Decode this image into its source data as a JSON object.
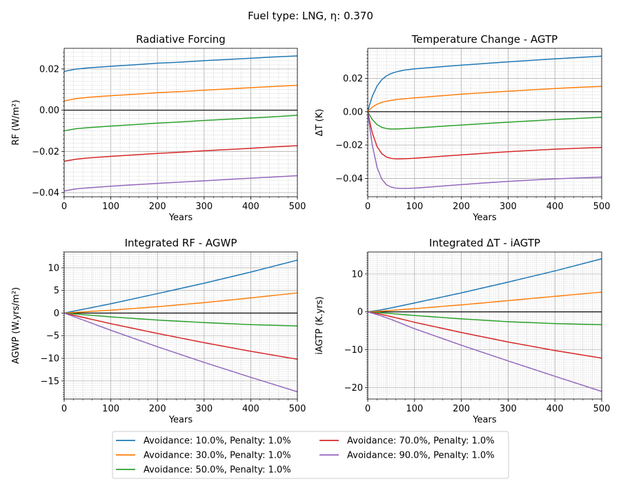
{
  "figure": {
    "title": "Fuel type: LNG, η: 0.370"
  },
  "series_colors": [
    "#1f77b4",
    "#ff7f0e",
    "#2ca02c",
    "#d62728",
    "#9467bd"
  ],
  "legend": {
    "placement": "bottom-center",
    "entries": [
      "Avoidance: 10.0%, Penalty: 1.0%",
      "Avoidance: 30.0%, Penalty: 1.0%",
      "Avoidance: 50.0%, Penalty: 1.0%",
      "Avoidance: 70.0%, Penalty: 1.0%",
      "Avoidance: 90.0%, Penalty: 1.0%"
    ]
  },
  "chart_data": [
    {
      "type": "line",
      "title": "Radiative Forcing",
      "xlabel": "Years",
      "ylabel": "RF (W/m²)",
      "xlim": [
        0,
        500
      ],
      "ylim": [
        -0.042,
        0.03
      ],
      "xticks": [
        0,
        100,
        200,
        300,
        400,
        500
      ],
      "yticks": [
        -0.04,
        -0.02,
        0.0,
        0.02
      ],
      "ytick_labels": [
        "−0.04",
        "−0.02",
        "0.00",
        "0.02"
      ],
      "grid": true,
      "zero_line": true,
      "x": [
        0,
        25,
        50,
        100,
        150,
        200,
        250,
        300,
        350,
        400,
        450,
        500
      ],
      "series": [
        {
          "name": "Avoidance: 10.0%, Penalty: 1.0%",
          "values": [
            0.0188,
            0.0199,
            0.0205,
            0.0213,
            0.022,
            0.0228,
            0.0233,
            0.024,
            0.0246,
            0.0252,
            0.0258,
            0.0263
          ]
        },
        {
          "name": "Avoidance: 30.0%, Penalty: 1.0%",
          "values": [
            0.0045,
            0.0056,
            0.0062,
            0.007,
            0.0077,
            0.0085,
            0.009,
            0.0097,
            0.0103,
            0.0109,
            0.0115,
            0.0121
          ]
        },
        {
          "name": "Avoidance: 50.0%, Penalty: 1.0%",
          "values": [
            -0.01,
            -0.009,
            -0.0085,
            -0.0077,
            -0.007,
            -0.0063,
            -0.0057,
            -0.005,
            -0.0044,
            -0.0038,
            -0.0032,
            -0.0025
          ]
        },
        {
          "name": "Avoidance: 70.0%, Penalty: 1.0%",
          "values": [
            -0.0248,
            -0.0238,
            -0.0232,
            -0.0224,
            -0.0217,
            -0.021,
            -0.0204,
            -0.0197,
            -0.0191,
            -0.0185,
            -0.0178,
            -0.0172
          ]
        },
        {
          "name": "Avoidance: 90.0%, Penalty: 1.0%",
          "values": [
            -0.0392,
            -0.0382,
            -0.0377,
            -0.0369,
            -0.0362,
            -0.0355,
            -0.0349,
            -0.0343,
            -0.0336,
            -0.033,
            -0.0324,
            -0.0318
          ]
        }
      ]
    },
    {
      "type": "line",
      "title": "Temperature Change - AGTP",
      "xlabel": "Years",
      "ylabel": "ΔT (K)",
      "xlim": [
        0,
        500
      ],
      "ylim": [
        -0.051,
        0.038
      ],
      "xticks": [
        0,
        100,
        200,
        300,
        400,
        500
      ],
      "yticks": [
        -0.04,
        -0.02,
        0.0,
        0.02
      ],
      "ytick_labels": [
        "−0.04",
        "−0.02",
        "0.00",
        "0.02"
      ],
      "grid": true,
      "zero_line": true,
      "x": [
        0,
        5,
        10,
        20,
        30,
        40,
        50,
        60,
        70,
        80,
        100,
        150,
        200,
        250,
        300,
        350,
        400,
        450,
        500
      ],
      "series": [
        {
          "name": "Avoidance: 10.0%, Penalty: 1.0%",
          "values": [
            0.0,
            0.0052,
            0.0095,
            0.0155,
            0.0192,
            0.0215,
            0.0229,
            0.0238,
            0.0245,
            0.025,
            0.0257,
            0.0268,
            0.0279,
            0.0289,
            0.0299,
            0.0308,
            0.0317,
            0.0325,
            0.0333
          ]
        },
        {
          "name": "Avoidance: 30.0%, Penalty: 1.0%",
          "values": [
            0.0,
            0.0015,
            0.0028,
            0.0045,
            0.0056,
            0.0063,
            0.0068,
            0.0072,
            0.0075,
            0.0078,
            0.0083,
            0.0094,
            0.0105,
            0.0114,
            0.0123,
            0.0131,
            0.0139,
            0.0146,
            0.0152
          ]
        },
        {
          "name": "Avoidance: 50.0%, Penalty: 1.0%",
          "values": [
            0.0,
            -0.0025,
            -0.0048,
            -0.0078,
            -0.0094,
            -0.0101,
            -0.0104,
            -0.0104,
            -0.0103,
            -0.0101,
            -0.0098,
            -0.0089,
            -0.008,
            -0.0071,
            -0.0063,
            -0.0055,
            -0.0047,
            -0.004,
            -0.0033
          ]
        },
        {
          "name": "Avoidance: 70.0%, Penalty: 1.0%",
          "values": [
            0.0,
            -0.007,
            -0.013,
            -0.021,
            -0.0252,
            -0.0272,
            -0.028,
            -0.0283,
            -0.0283,
            -0.0282,
            -0.0279,
            -0.0269,
            -0.0259,
            -0.0249,
            -0.024,
            -0.0232,
            -0.0225,
            -0.0219,
            -0.0214
          ]
        },
        {
          "name": "Avoidance: 90.0%, Penalty: 1.0%",
          "values": [
            0.0,
            -0.011,
            -0.0205,
            -0.0335,
            -0.0405,
            -0.0438,
            -0.0452,
            -0.0458,
            -0.046,
            -0.046,
            -0.0458,
            -0.0448,
            -0.0437,
            -0.0427,
            -0.0418,
            -0.041,
            -0.0403,
            -0.0397,
            -0.0392
          ]
        }
      ]
    },
    {
      "type": "line",
      "title": "Integrated RF - AGWP",
      "xlabel": "Years",
      "ylabel": "AGWP (W.yrs/m²)",
      "xlim": [
        0,
        500
      ],
      "ylim": [
        -19,
        13.5
      ],
      "xticks": [
        0,
        100,
        200,
        300,
        400,
        500
      ],
      "yticks": [
        -15,
        -10,
        -5,
        0,
        5,
        10
      ],
      "ytick_labels": [
        "−15",
        "−10",
        "−5",
        "0",
        "5",
        "10"
      ],
      "grid": true,
      "zero_line": true,
      "x": [
        0,
        100,
        200,
        300,
        400,
        500
      ],
      "series": [
        {
          "name": "Avoidance: 10.0%, Penalty: 1.0%",
          "values": [
            0,
            2.05,
            4.3,
            6.6,
            9.05,
            11.7
          ]
        },
        {
          "name": "Avoidance: 30.0%, Penalty: 1.0%",
          "values": [
            0,
            0.62,
            1.4,
            2.3,
            3.35,
            4.45
          ]
        },
        {
          "name": "Avoidance: 50.0%, Penalty: 1.0%",
          "values": [
            0,
            -0.85,
            -1.55,
            -2.1,
            -2.55,
            -2.85
          ]
        },
        {
          "name": "Avoidance: 70.0%, Penalty: 1.0%",
          "values": [
            0,
            -2.35,
            -4.5,
            -6.55,
            -8.45,
            -10.2
          ]
        },
        {
          "name": "Avoidance: 90.0%, Penalty: 1.0%",
          "values": [
            0,
            -3.8,
            -7.45,
            -10.9,
            -14.2,
            -17.4
          ]
        }
      ]
    },
    {
      "type": "line",
      "title": "Integrated ΔT - iAGTP",
      "xlabel": "Years",
      "ylabel": "iAGTP (K.yrs)",
      "xlim": [
        0,
        500
      ],
      "ylim": [
        -23,
        15.8
      ],
      "xticks": [
        0,
        100,
        200,
        300,
        400,
        500
      ],
      "yticks": [
        -20,
        -10,
        0,
        10
      ],
      "ytick_labels": [
        "−20",
        "−10",
        "0",
        "10"
      ],
      "grid": true,
      "zero_line": true,
      "x": [
        0,
        25,
        50,
        100,
        200,
        300,
        400,
        500
      ],
      "series": [
        {
          "name": "Avoidance: 10.0%, Penalty: 1.0%",
          "values": [
            0,
            0.45,
            1.05,
            2.35,
            5.0,
            7.85,
            10.8,
            14.0
          ]
        },
        {
          "name": "Avoidance: 30.0%, Penalty: 1.0%",
          "values": [
            0,
            0.15,
            0.38,
            0.85,
            1.85,
            2.95,
            4.1,
            5.2
          ]
        },
        {
          "name": "Avoidance: 50.0%, Penalty: 1.0%",
          "values": [
            0,
            -0.2,
            -0.45,
            -0.95,
            -1.85,
            -2.6,
            -3.1,
            -3.4
          ]
        },
        {
          "name": "Avoidance: 70.0%, Penalty: 1.0%",
          "values": [
            0,
            -0.55,
            -1.25,
            -2.75,
            -5.45,
            -7.95,
            -10.2,
            -12.2
          ]
        },
        {
          "name": "Avoidance: 90.0%, Penalty: 1.0%",
          "values": [
            0,
            -0.9,
            -2.0,
            -4.45,
            -8.8,
            -12.95,
            -17.0,
            -21.0
          ]
        }
      ]
    }
  ]
}
